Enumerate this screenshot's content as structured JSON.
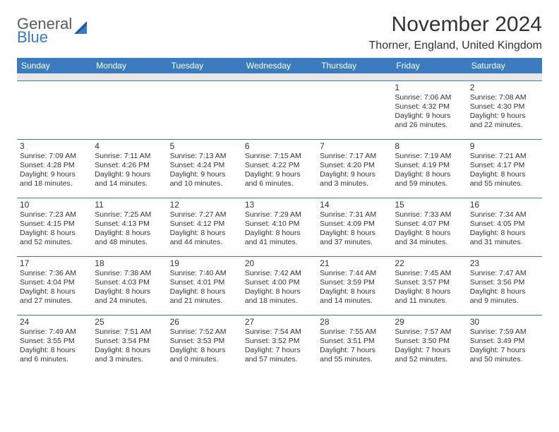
{
  "brand": {
    "line1": "General",
    "line2": "Blue",
    "color1": "#5a5a5a",
    "color2": "#3b7bbf"
  },
  "header": {
    "month_title": "November 2024",
    "location": "Thorner, England, United Kingdom"
  },
  "style": {
    "header_bg": "#3b7bbf",
    "header_fg": "#ffffff",
    "cell_border": "#3b7bbf",
    "spacer_bg": "#e8e8e8",
    "text_color": "#333333",
    "dow_fontsize": 12,
    "daynum_fontsize": 12,
    "info_fontsize": 10.5,
    "title_fontsize": 30,
    "location_fontsize": 16
  },
  "days_of_week": [
    "Sunday",
    "Monday",
    "Tuesday",
    "Wednesday",
    "Thursday",
    "Friday",
    "Saturday"
  ],
  "weeks": [
    [
      null,
      null,
      null,
      null,
      null,
      {
        "d": "1",
        "sr": "Sunrise: 7:06 AM",
        "ss": "Sunset: 4:32 PM",
        "dl1": "Daylight: 9 hours",
        "dl2": "and 26 minutes."
      },
      {
        "d": "2",
        "sr": "Sunrise: 7:08 AM",
        "ss": "Sunset: 4:30 PM",
        "dl1": "Daylight: 9 hours",
        "dl2": "and 22 minutes."
      }
    ],
    [
      {
        "d": "3",
        "sr": "Sunrise: 7:09 AM",
        "ss": "Sunset: 4:28 PM",
        "dl1": "Daylight: 9 hours",
        "dl2": "and 18 minutes."
      },
      {
        "d": "4",
        "sr": "Sunrise: 7:11 AM",
        "ss": "Sunset: 4:26 PM",
        "dl1": "Daylight: 9 hours",
        "dl2": "and 14 minutes."
      },
      {
        "d": "5",
        "sr": "Sunrise: 7:13 AM",
        "ss": "Sunset: 4:24 PM",
        "dl1": "Daylight: 9 hours",
        "dl2": "and 10 minutes."
      },
      {
        "d": "6",
        "sr": "Sunrise: 7:15 AM",
        "ss": "Sunset: 4:22 PM",
        "dl1": "Daylight: 9 hours",
        "dl2": "and 6 minutes."
      },
      {
        "d": "7",
        "sr": "Sunrise: 7:17 AM",
        "ss": "Sunset: 4:20 PM",
        "dl1": "Daylight: 9 hours",
        "dl2": "and 3 minutes."
      },
      {
        "d": "8",
        "sr": "Sunrise: 7:19 AM",
        "ss": "Sunset: 4:19 PM",
        "dl1": "Daylight: 8 hours",
        "dl2": "and 59 minutes."
      },
      {
        "d": "9",
        "sr": "Sunrise: 7:21 AM",
        "ss": "Sunset: 4:17 PM",
        "dl1": "Daylight: 8 hours",
        "dl2": "and 55 minutes."
      }
    ],
    [
      {
        "d": "10",
        "sr": "Sunrise: 7:23 AM",
        "ss": "Sunset: 4:15 PM",
        "dl1": "Daylight: 8 hours",
        "dl2": "and 52 minutes."
      },
      {
        "d": "11",
        "sr": "Sunrise: 7:25 AM",
        "ss": "Sunset: 4:13 PM",
        "dl1": "Daylight: 8 hours",
        "dl2": "and 48 minutes."
      },
      {
        "d": "12",
        "sr": "Sunrise: 7:27 AM",
        "ss": "Sunset: 4:12 PM",
        "dl1": "Daylight: 8 hours",
        "dl2": "and 44 minutes."
      },
      {
        "d": "13",
        "sr": "Sunrise: 7:29 AM",
        "ss": "Sunset: 4:10 PM",
        "dl1": "Daylight: 8 hours",
        "dl2": "and 41 minutes."
      },
      {
        "d": "14",
        "sr": "Sunrise: 7:31 AM",
        "ss": "Sunset: 4:09 PM",
        "dl1": "Daylight: 8 hours",
        "dl2": "and 37 minutes."
      },
      {
        "d": "15",
        "sr": "Sunrise: 7:33 AM",
        "ss": "Sunset: 4:07 PM",
        "dl1": "Daylight: 8 hours",
        "dl2": "and 34 minutes."
      },
      {
        "d": "16",
        "sr": "Sunrise: 7:34 AM",
        "ss": "Sunset: 4:05 PM",
        "dl1": "Daylight: 8 hours",
        "dl2": "and 31 minutes."
      }
    ],
    [
      {
        "d": "17",
        "sr": "Sunrise: 7:36 AM",
        "ss": "Sunset: 4:04 PM",
        "dl1": "Daylight: 8 hours",
        "dl2": "and 27 minutes."
      },
      {
        "d": "18",
        "sr": "Sunrise: 7:38 AM",
        "ss": "Sunset: 4:03 PM",
        "dl1": "Daylight: 8 hours",
        "dl2": "and 24 minutes."
      },
      {
        "d": "19",
        "sr": "Sunrise: 7:40 AM",
        "ss": "Sunset: 4:01 PM",
        "dl1": "Daylight: 8 hours",
        "dl2": "and 21 minutes."
      },
      {
        "d": "20",
        "sr": "Sunrise: 7:42 AM",
        "ss": "Sunset: 4:00 PM",
        "dl1": "Daylight: 8 hours",
        "dl2": "and 18 minutes."
      },
      {
        "d": "21",
        "sr": "Sunrise: 7:44 AM",
        "ss": "Sunset: 3:59 PM",
        "dl1": "Daylight: 8 hours",
        "dl2": "and 14 minutes."
      },
      {
        "d": "22",
        "sr": "Sunrise: 7:45 AM",
        "ss": "Sunset: 3:57 PM",
        "dl1": "Daylight: 8 hours",
        "dl2": "and 11 minutes."
      },
      {
        "d": "23",
        "sr": "Sunrise: 7:47 AM",
        "ss": "Sunset: 3:56 PM",
        "dl1": "Daylight: 8 hours",
        "dl2": "and 9 minutes."
      }
    ],
    [
      {
        "d": "24",
        "sr": "Sunrise: 7:49 AM",
        "ss": "Sunset: 3:55 PM",
        "dl1": "Daylight: 8 hours",
        "dl2": "and 6 minutes."
      },
      {
        "d": "25",
        "sr": "Sunrise: 7:51 AM",
        "ss": "Sunset: 3:54 PM",
        "dl1": "Daylight: 8 hours",
        "dl2": "and 3 minutes."
      },
      {
        "d": "26",
        "sr": "Sunrise: 7:52 AM",
        "ss": "Sunset: 3:53 PM",
        "dl1": "Daylight: 8 hours",
        "dl2": "and 0 minutes."
      },
      {
        "d": "27",
        "sr": "Sunrise: 7:54 AM",
        "ss": "Sunset: 3:52 PM",
        "dl1": "Daylight: 7 hours",
        "dl2": "and 57 minutes."
      },
      {
        "d": "28",
        "sr": "Sunrise: 7:55 AM",
        "ss": "Sunset: 3:51 PM",
        "dl1": "Daylight: 7 hours",
        "dl2": "and 55 minutes."
      },
      {
        "d": "29",
        "sr": "Sunrise: 7:57 AM",
        "ss": "Sunset: 3:50 PM",
        "dl1": "Daylight: 7 hours",
        "dl2": "and 52 minutes."
      },
      {
        "d": "30",
        "sr": "Sunrise: 7:59 AM",
        "ss": "Sunset: 3:49 PM",
        "dl1": "Daylight: 7 hours",
        "dl2": "and 50 minutes."
      }
    ]
  ]
}
